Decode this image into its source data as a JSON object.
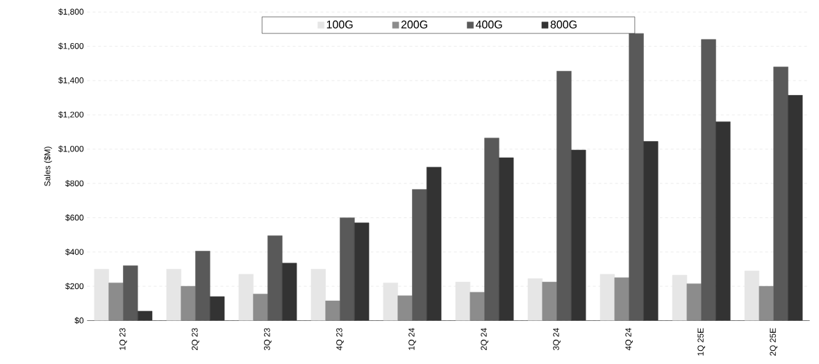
{
  "chart_data": {
    "type": "bar",
    "ylabel": "Sales ($M)",
    "categories": [
      "1Q 23",
      "2Q 23",
      "3Q 23",
      "4Q 23",
      "1Q 24",
      "2Q 24",
      "3Q 24",
      "4Q 24",
      "1Q 25E",
      "2Q 25E"
    ],
    "series": [
      {
        "name": "100G",
        "color": "#e6e6e6",
        "values": [
          300,
          300,
          270,
          300,
          220,
          225,
          245,
          270,
          265,
          290
        ]
      },
      {
        "name": "200G",
        "color": "#8c8c8c",
        "values": [
          220,
          200,
          155,
          115,
          145,
          165,
          225,
          250,
          215,
          200
        ]
      },
      {
        "name": "400G",
        "color": "#595959",
        "values": [
          320,
          405,
          495,
          600,
          765,
          1065,
          1455,
          1675,
          1640,
          1480
        ]
      },
      {
        "name": "800G",
        "color": "#333333",
        "values": [
          55,
          140,
          335,
          570,
          895,
          950,
          995,
          1045,
          1160,
          1315
        ]
      }
    ],
    "ylim": [
      0,
      1800
    ],
    "yticks": [
      {
        "value": 0,
        "label": "$0"
      },
      {
        "value": 200,
        "label": "$200"
      },
      {
        "value": 400,
        "label": "$400"
      },
      {
        "value": 600,
        "label": "$600"
      },
      {
        "value": 800,
        "label": "$800"
      },
      {
        "value": 1000,
        "label": "$1,000"
      },
      {
        "value": 1200,
        "label": "$1,200"
      },
      {
        "value": 1400,
        "label": "$1,400"
      },
      {
        "value": 1600,
        "label": "$1,600"
      },
      {
        "value": 1800,
        "label": "$1,800"
      }
    ],
    "grid": "y",
    "legend": "top"
  }
}
